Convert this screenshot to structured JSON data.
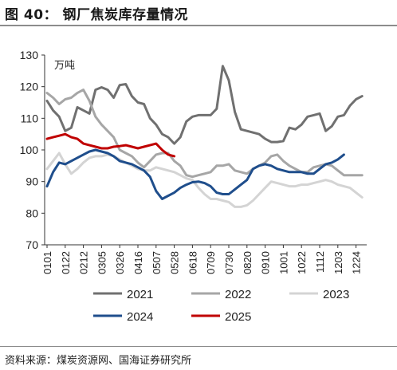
{
  "figure": {
    "title": "图 40：   钢厂焦炭库存量情况",
    "source": "资料来源：煤炭资源网、国海证券研究所"
  },
  "chart_data": {
    "type": "line",
    "unit_label": "万吨",
    "ylim": [
      70,
      130
    ],
    "yticks": [
      70,
      80,
      90,
      100,
      110,
      120,
      130
    ],
    "xticks": [
      "0101",
      "0122",
      "0212",
      "0305",
      "0326",
      "0416",
      "0507",
      "0528",
      "0618",
      "0709",
      "0730",
      "0820",
      "0910",
      "1001",
      "1022",
      "1112",
      "1203",
      "1224"
    ],
    "x_points_per_tick": 3,
    "legend_position": "bottom",
    "grid": false,
    "series": [
      {
        "name": "2021",
        "color": "#707070",
        "values": [
          115.5,
          112.5,
          110.5,
          106,
          107,
          113.5,
          112.5,
          111.5,
          119,
          119.8,
          119,
          116.5,
          120.5,
          120.8,
          117,
          115,
          114.5,
          110,
          108,
          105,
          104,
          102,
          104,
          109,
          110.5,
          111,
          111,
          111,
          113,
          126.5,
          122,
          112,
          106.5,
          106,
          105.5,
          105,
          103.5,
          102.5,
          102.5,
          102.8,
          107,
          106.5,
          108,
          110.5,
          111,
          111.5,
          106,
          107.5,
          110.5,
          111,
          114,
          116,
          117
        ]
      },
      {
        "name": "2022",
        "color": "#a6a6a6",
        "values": [
          118,
          116.5,
          114.5,
          116,
          116.5,
          118,
          119,
          115.5,
          110.5,
          108,
          106,
          104,
          100,
          99,
          98,
          96,
          94.5,
          96.5,
          98.5,
          99,
          99,
          96.5,
          95,
          92,
          91.5,
          92,
          92.5,
          93,
          95,
          95,
          95.5,
          93.5,
          93,
          92.5,
          94,
          95,
          96,
          98,
          98.5,
          96.5,
          95,
          94,
          93,
          93,
          94.5,
          95,
          95.5,
          95,
          93.5,
          92,
          92,
          92,
          92
        ]
      },
      {
        "name": "2023",
        "color": "#d4d4d4",
        "values": [
          94,
          96.5,
          99,
          95.5,
          92.5,
          94,
          96,
          97.5,
          98,
          98,
          98.5,
          98,
          97,
          96,
          95,
          94,
          93.5,
          93.5,
          94.5,
          94,
          93.5,
          93,
          92,
          91,
          90.5,
          88,
          86,
          84.5,
          84.5,
          84,
          83.5,
          82,
          82,
          82.5,
          84,
          86,
          88,
          90,
          89.5,
          89,
          88.5,
          88.5,
          89,
          89,
          89.5,
          90,
          90.5,
          90,
          89,
          88.5,
          88,
          86.5,
          85
        ]
      },
      {
        "name": "2024",
        "color": "#1f4e8c",
        "values": [
          88.5,
          93,
          96,
          95.5,
          96.5,
          97.5,
          98.5,
          99.5,
          100,
          99.5,
          99,
          98,
          96.5,
          96,
          95.5,
          94.5,
          93.5,
          91.5,
          87,
          84.5,
          85.5,
          86.5,
          88,
          89,
          89.8,
          90,
          89.5,
          88.5,
          86.5,
          86,
          86,
          87.5,
          89,
          90.5,
          94,
          95,
          95.5,
          95,
          94,
          93.5,
          93,
          93,
          93,
          92.5,
          92.5,
          94,
          95.5,
          96,
          97,
          98.5
        ]
      },
      {
        "name": "2025",
        "color": "#c00000",
        "values": [
          103.5,
          104,
          104.5,
          105,
          104,
          103.5,
          102,
          101.5,
          101,
          100.5,
          100.5,
          101,
          101.2,
          101.5,
          101,
          100.5,
          101,
          101.5,
          102,
          100,
          98.5,
          98
        ]
      }
    ]
  }
}
